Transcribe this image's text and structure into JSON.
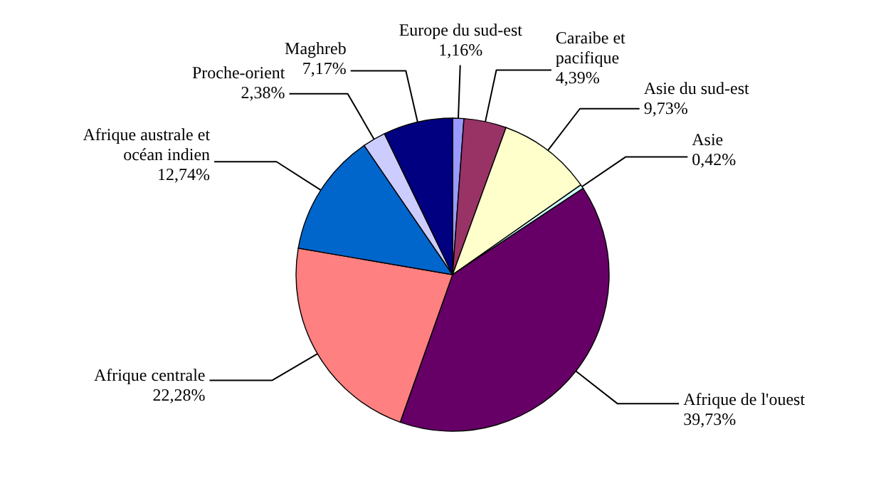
{
  "chart_data": {
    "type": "pie",
    "categories": [
      "Europe du sud-est",
      "Caraibe et pacifique",
      "Asie du sud-est",
      "Asie",
      "Afrique de l'ouest",
      "Afrique centrale",
      "Afrique australe et océan indien",
      "Proche-orient",
      "Maghreb"
    ],
    "values": [
      1.16,
      4.39,
      9.73,
      0.42,
      39.73,
      22.28,
      12.74,
      2.38,
      7.17
    ],
    "value_labels": [
      "1,16%",
      "4,39%",
      "9,73%",
      "0,42%",
      "39,73%",
      "22,28%",
      "12,74%",
      "2,38%",
      "7,17%"
    ],
    "colors": [
      "#9999ff",
      "#993366",
      "#ffffcc",
      "#ccffff",
      "#660066",
      "#ff8080",
      "#0066cc",
      "#ccccff",
      "#000080"
    ],
    "legend": false
  }
}
